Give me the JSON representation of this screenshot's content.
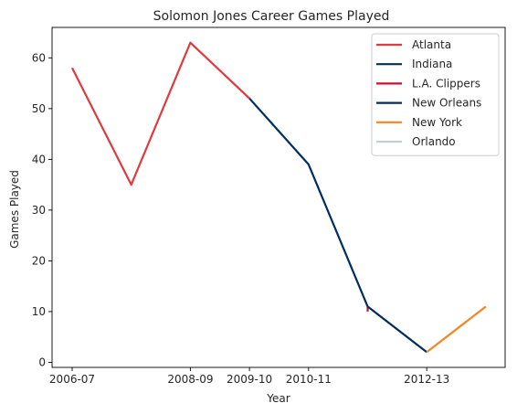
{
  "chart_data": {
    "type": "line",
    "title": "Solomon Jones  Career Games Played",
    "xlabel": "Year",
    "ylabel": "Games Played",
    "categories": [
      "2006-07",
      "2007-08",
      "2008-09",
      "2009-10",
      "2010-11",
      "2011-12",
      "2012-13",
      "2013-14"
    ],
    "x_tick_labels": [
      "2006-07",
      "2008-09",
      "2009-10",
      "2010-11",
      "2012-13"
    ],
    "ylim": [
      -1,
      66
    ],
    "yticks": [
      0,
      10,
      20,
      30,
      40,
      50,
      60
    ],
    "grid": false,
    "legend_position": "top-right",
    "series": [
      {
        "name": "Atlanta",
        "color": "#e03a3e",
        "points": [
          [
            "2006-07",
            58
          ],
          [
            "2007-08",
            35
          ],
          [
            "2008-09",
            63
          ],
          [
            "2009-10",
            52
          ]
        ]
      },
      {
        "name": "Indiana",
        "color": "#002d62",
        "points": [
          [
            "2009-10",
            52
          ],
          [
            "2010-11",
            39
          ],
          [
            "2011-12",
            11
          ]
        ]
      },
      {
        "name": "L.A. Clippers",
        "color": "#c8102e",
        "points": [
          [
            "2011-12",
            11
          ],
          [
            "2011-12",
            10
          ]
        ]
      },
      {
        "name": "New Orleans",
        "color": "#002b5c",
        "points": [
          [
            "2011-12",
            11
          ],
          [
            "2012-13",
            2
          ]
        ]
      },
      {
        "name": "New York",
        "color": "#f58426",
        "points": [
          [
            "2012-13",
            2
          ],
          [
            "2013-14",
            11
          ]
        ]
      },
      {
        "name": "Orlando",
        "color": "#c4ced4",
        "points": []
      }
    ]
  }
}
